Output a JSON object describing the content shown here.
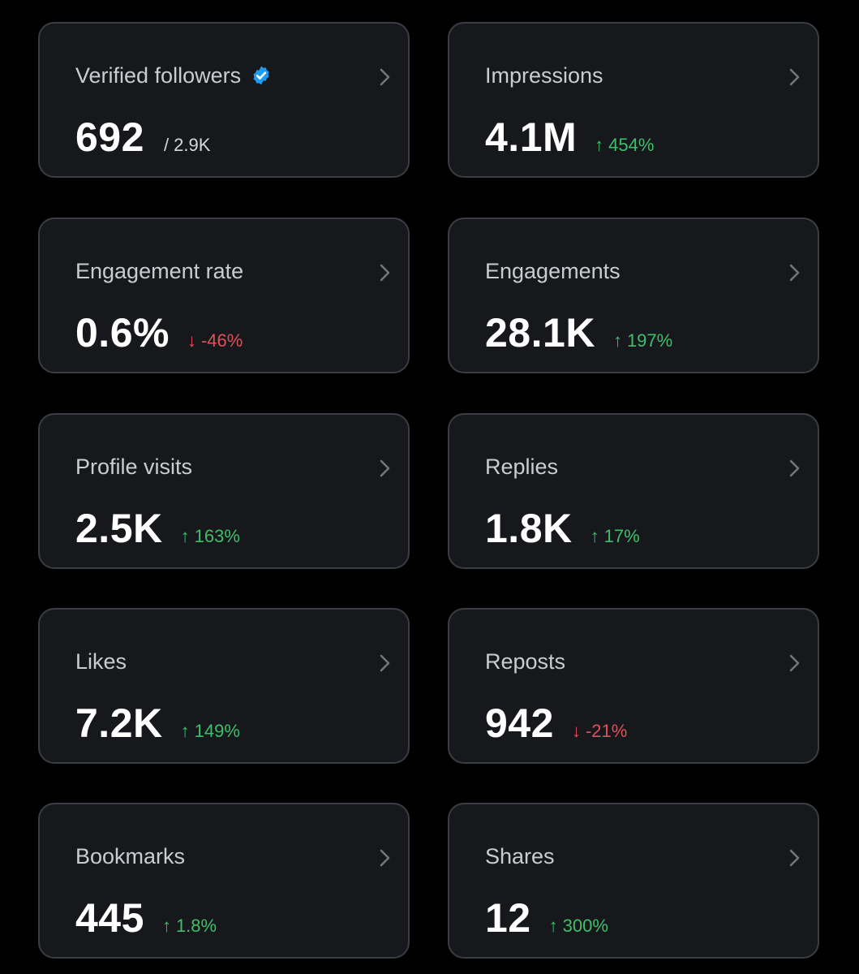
{
  "colors": {
    "up": "#3fbf6a",
    "down": "#e0505a",
    "verified": "#1d9bf0"
  },
  "cards": [
    {
      "title": "Verified followers",
      "value": "692",
      "sub": "/ 2.9K",
      "verified": true
    },
    {
      "title": "Impressions",
      "value": "4.1M",
      "arrow": "↑",
      "delta": "454%",
      "dir": "up"
    },
    {
      "title": "Engagement rate",
      "value": "0.6%",
      "arrow": "↓",
      "delta": "-46%",
      "dir": "down"
    },
    {
      "title": "Engagements",
      "value": "28.1K",
      "arrow": "↑",
      "delta": "197%",
      "dir": "up"
    },
    {
      "title": "Profile visits",
      "value": "2.5K",
      "arrow": "↑",
      "delta": "163%",
      "dir": "up"
    },
    {
      "title": "Replies",
      "value": "1.8K",
      "arrow": "↑",
      "delta": "17%",
      "dir": "up"
    },
    {
      "title": "Likes",
      "value": "7.2K",
      "arrow": "↑",
      "delta": "149%",
      "dir": "up"
    },
    {
      "title": "Reposts",
      "value": "942",
      "arrow": "↓",
      "delta": "-21%",
      "dir": "down"
    },
    {
      "title": "Bookmarks",
      "value": "445",
      "arrow": "↑",
      "delta": "1.8%",
      "dir": "up"
    },
    {
      "title": "Shares",
      "value": "12",
      "arrow": "↑",
      "delta": "300%",
      "dir": "up"
    }
  ]
}
